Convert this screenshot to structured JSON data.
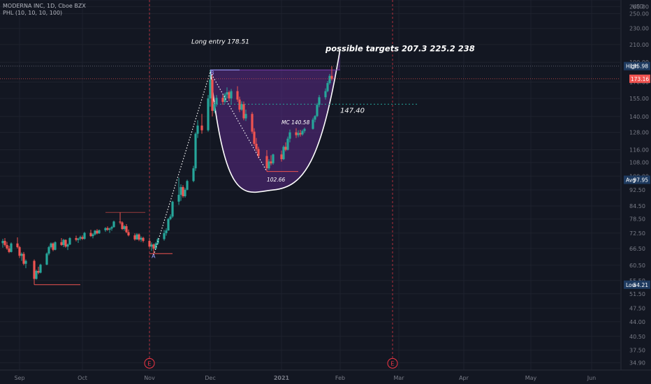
{
  "header": {
    "line1": "MODERNA INC, 1D, Cboe BZX",
    "line2": "PHL (10, 10, 10, 100)"
  },
  "colors": {
    "background": "#131722",
    "up": "#26a69a",
    "down": "#ef5350",
    "cup_fill": "#5b2a86",
    "grid": "#1e222d",
    "event_line": "#f23645"
  },
  "chart_data": {
    "type": "candlestick",
    "y_scale": "log",
    "ylim": [
      33.5,
      270
    ],
    "y_currency": "USD",
    "y_ticks": [
      34.9,
      37.5,
      40.5,
      44.0,
      47.5,
      51.5,
      55.5,
      60.5,
      66.5,
      72.5,
      78.5,
      84.5,
      92.5,
      100.0,
      108.0,
      116.0,
      128.0,
      140.0,
      155.0,
      170.0,
      190.0,
      210.0,
      230.0,
      250.0,
      260.0,
      270.0
    ],
    "x_labels": [
      {
        "label": "Sep",
        "date": "2020-09-01"
      },
      {
        "label": "Oct",
        "date": "2020-10-01"
      },
      {
        "label": "Nov",
        "date": "2020-11-02"
      },
      {
        "label": "Dec",
        "date": "2020-12-01"
      },
      {
        "label": "2021",
        "date": "2021-01-04"
      },
      {
        "label": "Feb",
        "date": "2021-02-01"
      },
      {
        "label": "Mar",
        "date": "2021-03-01"
      },
      {
        "label": "Apr",
        "date": "2021-04-01"
      },
      {
        "label": "May",
        "date": "2021-05-03"
      },
      {
        "label": "Jun",
        "date": "2021-06-01"
      }
    ],
    "price_labels": [
      {
        "name": "High",
        "value": "185.98",
        "price": 185.98,
        "color": "#1e3a5f"
      },
      {
        "name": "",
        "value": "173.16",
        "price": 173.16,
        "color": "#ef5350"
      },
      {
        "name": "Avg",
        "value": "97.95",
        "price": 97.95,
        "color": "#1e3a5f"
      },
      {
        "name": "Low",
        "value": "54.21",
        "price": 54.21,
        "color": "#1e3a5f"
      }
    ],
    "annotations": [
      {
        "text": "Long entry 178.51",
        "date": "2020-12-02",
        "price": 211
      },
      {
        "text": "possible targets  207.3   225.2    238",
        "date": "2021-01-25",
        "price": 202
      },
      {
        "text": "147.40",
        "date": "2021-02-01",
        "price": 143
      },
      {
        "text": "MC 140.58",
        "date": "2021-01-04",
        "price": 134
      },
      {
        "text": "102.66",
        "date": "2020-12-28",
        "price": 97
      }
    ],
    "markers": [
      {
        "text": "B",
        "date": "2020-12-02",
        "price": 180
      },
      {
        "text": "A",
        "date": "2020-11-04",
        "price": 64
      },
      {
        "text": "E",
        "date": "2020-11-02",
        "price": 34.8
      },
      {
        "text": "E",
        "date": "2021-02-26",
        "price": 34.8
      }
    ],
    "candles": [
      [
        "2020-08-24",
        68.5,
        70.2,
        66.8,
        69.4
      ],
      [
        "2020-08-25",
        69.4,
        70.5,
        67.2,
        67.8
      ],
      [
        "2020-08-26",
        67.8,
        69.0,
        66.0,
        66.5
      ],
      [
        "2020-08-27",
        66.5,
        67.5,
        64.8,
        65.2
      ],
      [
        "2020-08-28",
        65.2,
        68.8,
        65.0,
        68.4
      ],
      [
        "2020-08-31",
        68.4,
        70.8,
        66.5,
        67.0
      ],
      [
        "2020-09-01",
        67.0,
        67.5,
        63.0,
        63.8
      ],
      [
        "2020-09-02",
        63.8,
        65.0,
        62.0,
        64.5
      ],
      [
        "2020-09-03",
        64.5,
        65.2,
        60.5,
        61.0
      ],
      [
        "2020-09-04",
        61.0,
        62.5,
        59.5,
        62.0
      ],
      [
        "2020-09-08",
        62.0,
        62.5,
        54.21,
        56.0
      ],
      [
        "2020-09-09",
        56.0,
        59.0,
        55.8,
        58.6
      ],
      [
        "2020-09-10",
        58.6,
        60.0,
        57.5,
        58.0
      ],
      [
        "2020-09-11",
        58.0,
        61.0,
        57.8,
        60.7
      ],
      [
        "2020-09-14",
        60.7,
        65.0,
        60.5,
        64.6
      ],
      [
        "2020-09-15",
        64.6,
        67.5,
        64.0,
        67.0
      ],
      [
        "2020-09-16",
        67.0,
        68.8,
        66.5,
        68.4
      ],
      [
        "2020-09-17",
        68.4,
        68.8,
        65.5,
        66.0
      ],
      [
        "2020-09-18",
        66.0,
        69.2,
        65.8,
        68.9
      ],
      [
        "2020-09-21",
        68.9,
        70.5,
        67.5,
        67.8
      ],
      [
        "2020-09-22",
        67.8,
        70.2,
        67.0,
        69.8
      ],
      [
        "2020-09-23",
        69.8,
        70.0,
        66.8,
        67.2
      ],
      [
        "2020-09-24",
        67.2,
        68.4,
        65.9,
        68.0
      ],
      [
        "2020-09-25",
        68.0,
        70.9,
        67.8,
        70.5
      ],
      [
        "2020-09-28",
        70.5,
        71.5,
        69.2,
        69.8
      ],
      [
        "2020-09-29",
        69.8,
        70.6,
        68.6,
        70.3
      ],
      [
        "2020-09-30",
        70.3,
        71.5,
        69.6,
        70.9
      ],
      [
        "2020-10-01",
        70.9,
        71.6,
        69.8,
        70.2
      ],
      [
        "2020-10-02",
        70.2,
        73.0,
        69.9,
        72.6
      ],
      [
        "2020-10-05",
        72.6,
        73.9,
        71.0,
        71.3
      ],
      [
        "2020-10-06",
        71.3,
        72.5,
        70.4,
        72.0
      ],
      [
        "2020-10-07",
        72.0,
        73.8,
        71.6,
        73.5
      ],
      [
        "2020-10-08",
        73.5,
        74.2,
        72.0,
        72.4
      ],
      [
        "2020-10-09",
        72.4,
        74.0,
        72.2,
        73.7
      ],
      [
        "2020-10-12",
        73.7,
        75.0,
        73.0,
        74.6
      ],
      [
        "2020-10-13",
        74.6,
        75.3,
        73.4,
        73.9
      ],
      [
        "2020-10-14",
        73.9,
        74.8,
        72.6,
        74.4
      ],
      [
        "2020-10-15",
        74.4,
        75.5,
        73.5,
        75.0
      ],
      [
        "2020-10-16",
        75.0,
        77.8,
        74.8,
        77.4
      ],
      [
        "2020-10-19",
        77.4,
        81.5,
        76.2,
        77.0
      ],
      [
        "2020-10-20",
        77.0,
        77.5,
        73.8,
        74.2
      ],
      [
        "2020-10-21",
        74.2,
        75.9,
        73.5,
        75.4
      ],
      [
        "2020-10-22",
        75.4,
        76.3,
        72.5,
        72.9
      ],
      [
        "2020-10-23",
        72.9,
        74.0,
        71.2,
        71.6
      ],
      [
        "2020-10-26",
        71.6,
        72.4,
        69.5,
        70.0
      ],
      [
        "2020-10-27",
        70.0,
        72.5,
        69.8,
        72.0
      ],
      [
        "2020-10-28",
        72.0,
        72.4,
        69.3,
        69.9
      ],
      [
        "2020-10-29",
        69.9,
        71.2,
        69.0,
        70.6
      ],
      [
        "2020-10-30",
        70.6,
        71.0,
        68.8,
        69.4
      ],
      [
        "2020-11-02",
        69.4,
        70.6,
        66.8,
        67.2
      ],
      [
        "2020-11-03",
        67.2,
        68.8,
        65.6,
        68.0
      ],
      [
        "2020-11-04",
        68.0,
        68.4,
        64.6,
        66.4
      ],
      [
        "2020-11-05",
        66.4,
        68.9,
        66.0,
        68.4
      ],
      [
        "2020-11-06",
        68.4,
        70.6,
        67.9,
        70.1
      ],
      [
        "2020-11-09",
        70.1,
        73.8,
        69.5,
        72.5
      ],
      [
        "2020-11-10",
        72.5,
        74.5,
        71.5,
        73.6
      ],
      [
        "2020-11-11",
        73.6,
        79.0,
        73.5,
        78.5
      ],
      [
        "2020-11-12",
        78.5,
        80.6,
        78.0,
        79.6
      ],
      [
        "2020-11-13",
        79.6,
        87.0,
        79.0,
        86.6
      ],
      [
        "2020-11-16",
        86.6,
        99.0,
        85.0,
        90.0
      ],
      [
        "2020-11-17",
        90.0,
        95.5,
        87.0,
        94.0
      ],
      [
        "2020-11-18",
        94.0,
        95.0,
        88.5,
        89.3
      ],
      [
        "2020-11-19",
        89.3,
        93.5,
        88.6,
        92.6
      ],
      [
        "2020-11-20",
        92.6,
        98.0,
        92.3,
        97.3
      ],
      [
        "2020-11-23",
        97.3,
        106.0,
        96.6,
        104.5
      ],
      [
        "2020-11-24",
        104.5,
        128.0,
        103.0,
        127.0
      ],
      [
        "2020-11-25",
        127.0,
        137.0,
        124.0,
        133.0
      ],
      [
        "2020-11-27",
        133.0,
        142.0,
        127.0,
        129.5
      ],
      [
        "2020-11-30",
        129.5,
        158.0,
        128.5,
        155.0
      ],
      [
        "2020-12-01",
        155.0,
        182.0,
        148.0,
        172.5
      ],
      [
        "2020-12-02",
        172.5,
        178.51,
        140.0,
        144.5
      ],
      [
        "2020-12-03",
        144.5,
        152.0,
        142.5,
        150.2
      ],
      [
        "2020-12-04",
        150.2,
        158.0,
        148.0,
        155.5
      ],
      [
        "2020-12-07",
        155.5,
        158.3,
        149.5,
        152.0
      ],
      [
        "2020-12-08",
        152.0,
        160.0,
        150.5,
        158.4
      ],
      [
        "2020-12-09",
        158.4,
        165.0,
        155.0,
        160.5
      ],
      [
        "2020-12-10",
        160.5,
        162.0,
        152.5,
        155.0
      ],
      [
        "2020-12-11",
        155.0,
        163.5,
        150.0,
        161.5
      ],
      [
        "2020-12-14",
        161.5,
        166.0,
        152.0,
        154.0
      ],
      [
        "2020-12-15",
        154.0,
        156.5,
        143.5,
        145.5
      ],
      [
        "2020-12-16",
        145.5,
        152.5,
        144.5,
        150.0
      ],
      [
        "2020-12-17",
        150.0,
        152.3,
        137.0,
        138.5
      ],
      [
        "2020-12-18",
        138.5,
        145.5,
        136.5,
        142.0
      ],
      [
        "2020-12-21",
        142.0,
        143.5,
        127.0,
        128.5
      ],
      [
        "2020-12-22",
        128.5,
        131.0,
        118.5,
        120.0
      ],
      [
        "2020-12-23",
        120.0,
        124.0,
        115.0,
        116.5
      ],
      [
        "2020-12-24",
        116.5,
        118.0,
        110.5,
        112.0
      ],
      [
        "2020-12-28",
        112.0,
        115.8,
        102.66,
        104.5
      ],
      [
        "2020-12-29",
        104.5,
        110.0,
        103.5,
        108.6
      ],
      [
        "2020-12-30",
        108.6,
        112.5,
        106.3,
        107.5
      ],
      [
        "2020-12-31",
        107.5,
        113.5,
        106.6,
        113.0
      ],
      [
        "2021-01-04",
        113.0,
        115.5,
        108.5,
        110.0
      ],
      [
        "2021-01-05",
        110.0,
        119.0,
        109.5,
        118.0
      ],
      [
        "2021-01-06",
        118.0,
        121.0,
        115.0,
        116.0
      ],
      [
        "2021-01-07",
        116.0,
        125.0,
        115.5,
        123.5
      ],
      [
        "2021-01-08",
        123.5,
        130.0,
        121.0,
        128.0
      ],
      [
        "2021-01-11",
        128.0,
        131.0,
        124.0,
        126.0
      ],
      [
        "2021-01-12",
        126.0,
        129.5,
        124.5,
        127.5
      ],
      [
        "2021-01-13",
        127.5,
        129.8,
        125.0,
        126.5
      ],
      [
        "2021-01-14",
        126.5,
        130.0,
        125.6,
        129.0
      ],
      [
        "2021-01-15",
        129.0,
        131.5,
        127.5,
        130.5
      ],
      [
        "2021-01-19",
        130.5,
        139.0,
        130.0,
        137.5
      ],
      [
        "2021-01-20",
        137.5,
        141.0,
        135.5,
        140.3
      ],
      [
        "2021-01-21",
        140.3,
        151.0,
        139.5,
        149.5
      ],
      [
        "2021-01-22",
        149.5,
        158.0,
        147.5,
        156.0
      ],
      [
        "2021-01-25",
        156.0,
        164.0,
        154.0,
        161.5
      ],
      [
        "2021-01-26",
        161.5,
        171.0,
        160.5,
        169.0
      ],
      [
        "2021-01-27",
        169.0,
        178.0,
        167.5,
        176.0
      ],
      [
        "2021-01-28",
        176.0,
        185.98,
        171.5,
        173.16
      ]
    ]
  }
}
